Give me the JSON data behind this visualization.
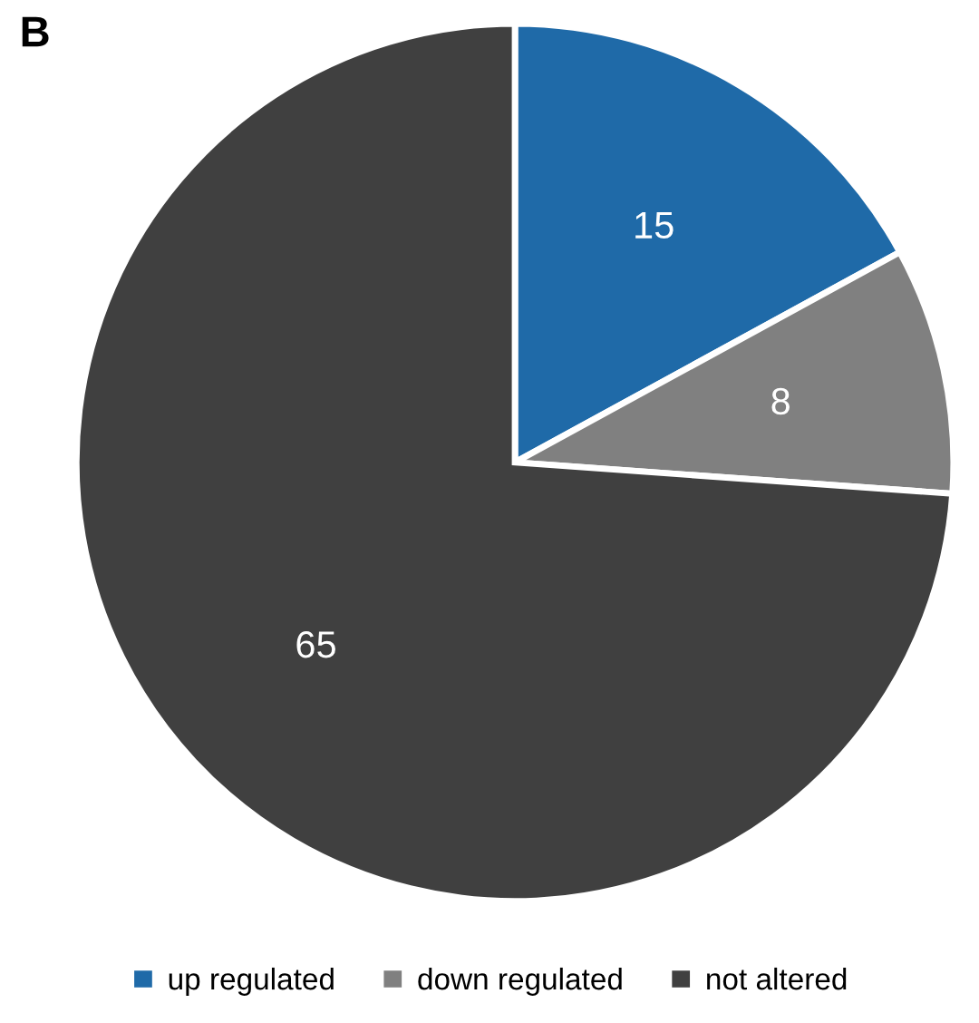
{
  "chart_data": {
    "type": "pie",
    "title": "B",
    "categories": [
      "up regulated",
      "down regulated",
      "not altered"
    ],
    "values": [
      15,
      8,
      65
    ],
    "colors": [
      "#1f6aa8",
      "#808080",
      "#404040"
    ],
    "data_labels": true,
    "legend": "bottom"
  }
}
